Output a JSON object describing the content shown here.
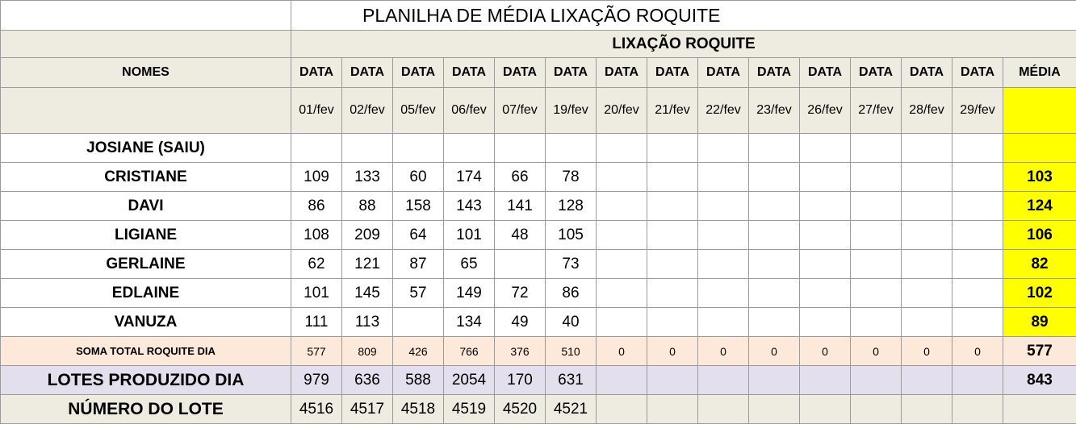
{
  "title": "PLANILHA DE MÉDIA LIXAÇÃO ROQUITE",
  "subtitle": "LIXAÇÃO ROQUITE",
  "header": {
    "names_label": "NOMES",
    "data_label": "DATA",
    "media_label": "MÉDIA"
  },
  "dates": [
    "01/fev",
    "02/fev",
    "05/fev",
    "06/fev",
    "07/fev",
    "19/fev",
    "20/fev",
    "21/fev",
    "22/fev",
    "23/fev",
    "26/fev",
    "27/fev",
    "28/fev",
    "29/fev"
  ],
  "rows": [
    {
      "name": "JOSIANE (SAIU)",
      "values": [
        "",
        "",
        "",
        "",
        "",
        ""
      ],
      "media": ""
    },
    {
      "name": "CRISTIANE",
      "values": [
        "109",
        "133",
        "60",
        "174",
        "66",
        "78"
      ],
      "media": "103"
    },
    {
      "name": "DAVI",
      "values": [
        "86",
        "88",
        "158",
        "143",
        "141",
        "128"
      ],
      "media": "124"
    },
    {
      "name": "LIGIANE",
      "values": [
        "108",
        "209",
        "64",
        "101",
        "48",
        "105"
      ],
      "media": "106"
    },
    {
      "name": "GERLAINE",
      "values": [
        "62",
        "121",
        "87",
        "65",
        "",
        "73"
      ],
      "media": "82"
    },
    {
      "name": "EDLAINE",
      "values": [
        "101",
        "145",
        "57",
        "149",
        "72",
        "86"
      ],
      "media": "102"
    },
    {
      "name": "VANUZA",
      "values": [
        "111",
        "113",
        "",
        "134",
        "49",
        "40"
      ],
      "media": "89"
    }
  ],
  "soma": {
    "label": "SOMA TOTAL  ROQUITE DIA",
    "values": [
      "577",
      "809",
      "426",
      "766",
      "376",
      "510",
      "0",
      "0",
      "0",
      "0",
      "0",
      "0",
      "0",
      "0"
    ],
    "media": "577"
  },
  "lotes": {
    "label": "LOTES PRODUZIDO DIA",
    "values": [
      "979",
      "636",
      "588",
      "2054",
      "170",
      "631",
      "",
      "",
      "",
      "",
      "",
      "",
      "",
      ""
    ],
    "media": "843"
  },
  "numero": {
    "label": "NÚMERO DO LOTE",
    "values": [
      "4516",
      "4517",
      "4518",
      "4519",
      "4520",
      "4521",
      "",
      "",
      "",
      "",
      "",
      "",
      "",
      ""
    ],
    "media": ""
  },
  "colors": {
    "header_bg": "#eeece1",
    "media_yellow": "#ffff00",
    "media_orange": "#ffc000",
    "soma_bg": "#fde9d9",
    "lotes_bg": "#e4dfec"
  }
}
